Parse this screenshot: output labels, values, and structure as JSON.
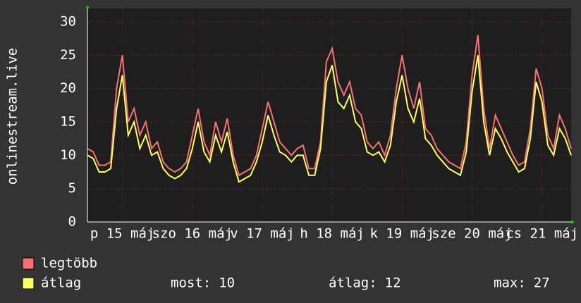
{
  "chart_data": {
    "type": "line",
    "y_label": "onlinestream.live",
    "x": [
      0,
      2,
      4,
      6,
      8,
      10,
      12,
      14,
      16,
      18,
      20,
      22,
      24,
      26,
      28,
      30,
      32,
      34,
      36,
      38,
      40,
      42,
      44,
      46,
      48,
      50,
      52,
      54,
      56,
      58,
      60,
      62,
      64,
      66,
      68,
      70,
      72,
      74,
      76,
      78,
      80,
      82,
      84,
      86,
      88,
      90,
      92,
      94,
      96,
      98,
      100,
      102,
      104,
      106,
      108,
      110,
      112,
      114,
      116,
      118,
      120,
      122,
      124,
      126,
      128,
      130,
      132,
      134,
      136,
      138,
      140,
      142,
      144,
      146,
      148,
      150,
      152,
      154,
      156,
      158,
      160,
      162,
      164,
      166
    ],
    "xlim": [
      0,
      166
    ],
    "xticks": [
      {
        "value": 12,
        "label": "p 15 máj"
      },
      {
        "value": 36,
        "label": "szo 16 máj"
      },
      {
        "value": 60,
        "label": "v 17 máj"
      },
      {
        "value": 84,
        "label": "h 18 máj"
      },
      {
        "value": 108,
        "label": "k 19 máj"
      },
      {
        "value": 132,
        "label": "sze 20 máj"
      },
      {
        "value": 156,
        "label": "cs 21 máj"
      }
    ],
    "ylim": [
      0,
      32
    ],
    "yticks": [
      0,
      5,
      10,
      15,
      20,
      25,
      30
    ],
    "grid": true,
    "series": [
      {
        "name": "legtöbb",
        "color": "#f87171",
        "values": [
          11,
          10.5,
          8.5,
          8.5,
          9,
          20,
          25,
          15,
          17,
          13,
          15,
          11,
          12,
          9,
          8,
          7.5,
          8,
          9,
          13,
          17,
          12,
          10,
          15,
          12,
          15.5,
          10,
          7,
          7.5,
          8,
          10,
          14,
          18,
          15,
          12,
          11,
          10,
          11,
          11.5,
          8,
          8,
          12,
          24,
          26,
          21,
          19,
          21,
          17,
          16,
          12,
          11,
          12,
          10,
          13,
          20,
          25,
          20,
          17,
          21,
          14,
          13,
          11,
          10,
          9,
          8.5,
          8,
          12,
          22,
          28,
          17,
          11,
          16,
          14,
          12,
          10,
          8.5,
          9,
          14,
          23,
          20,
          13,
          11,
          16,
          14,
          11
        ]
      },
      {
        "name": "átlag",
        "color": "#ffff66",
        "values": [
          10,
          9.5,
          7.5,
          7.5,
          8,
          17,
          22,
          13,
          15,
          11,
          13,
          10,
          10.5,
          8,
          7,
          6.5,
          7,
          8,
          11,
          15,
          10.5,
          9,
          13,
          10.5,
          13.5,
          9,
          6,
          6.5,
          7,
          9,
          12,
          16,
          13,
          10.5,
          10,
          9,
          10,
          10,
          7,
          7,
          11,
          21,
          23.5,
          18,
          17,
          19,
          15,
          14,
          10.5,
          10,
          10.5,
          9,
          11.5,
          18,
          22,
          17,
          15,
          18.5,
          12.5,
          11.5,
          10,
          9,
          8,
          7.5,
          7,
          10.5,
          19.5,
          25,
          15,
          10,
          14,
          12.5,
          10.5,
          9,
          7.5,
          8,
          12.5,
          21,
          18,
          11.5,
          10,
          14,
          12.5,
          10
        ]
      }
    ],
    "stats": [
      {
        "label": "most:",
        "value": 10
      },
      {
        "label": "átlag:",
        "value": 12
      },
      {
        "label": "max:",
        "value": 27
      }
    ]
  }
}
